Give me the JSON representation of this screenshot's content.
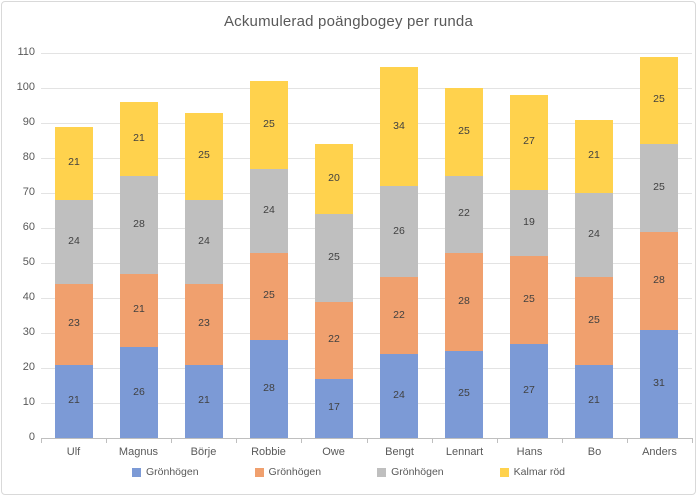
{
  "chart_data": {
    "type": "bar",
    "stacked": true,
    "title": "Ackumulerad poängbogey per runda",
    "categories": [
      "Ulf",
      "Magnus",
      "Börje",
      "Robbie",
      "Owe",
      "Bengt",
      "Lennart",
      "Hans",
      "Bo",
      "Anders"
    ],
    "series": [
      {
        "name": "Grönhögen",
        "color": "#7C9AD6",
        "values": [
          21,
          26,
          21,
          28,
          17,
          24,
          25,
          27,
          21,
          31
        ]
      },
      {
        "name": "Grönhögen",
        "color": "#F0A06E",
        "values": [
          23,
          21,
          23,
          25,
          22,
          22,
          28,
          25,
          25,
          28
        ]
      },
      {
        "name": "Grönhögen",
        "color": "#BFBFBF",
        "values": [
          24,
          28,
          24,
          24,
          25,
          26,
          22,
          19,
          24,
          25
        ]
      },
      {
        "name": "Kalmar röd",
        "color": "#FFD24D",
        "values": [
          21,
          21,
          25,
          25,
          20,
          34,
          25,
          27,
          21,
          25
        ]
      }
    ],
    "totals": [
      89,
      96,
      93,
      102,
      84,
      106,
      100,
      98,
      91,
      109
    ],
    "ylim": [
      0,
      110
    ],
    "ytick_step": 10,
    "grid": true,
    "legend_position": "bottom",
    "data_labels": true
  },
  "colors": {
    "background": "#FFFFFF",
    "border": "#D9D9D9",
    "gridline": "#E3E3E3",
    "axis_line": "#BFBFBF",
    "title_text": "#595959",
    "axis_text": "#595959",
    "data_label_text": "#404040"
  }
}
